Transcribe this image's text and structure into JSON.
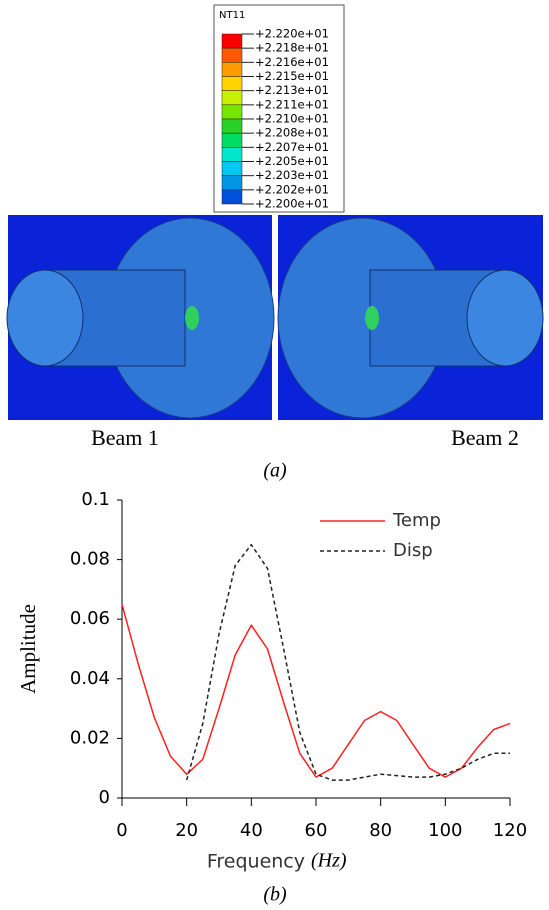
{
  "legend": {
    "title": "NT11",
    "labels": [
      "+2.220e+01",
      "+2.218e+01",
      "+2.216e+01",
      "+2.215e+01",
      "+2.213e+01",
      "+2.211e+01",
      "+2.210e+01",
      "+2.208e+01",
      "+2.207e+01",
      "+2.205e+01",
      "+2.203e+01",
      "+2.202e+01",
      "+2.200e+01"
    ],
    "colors": [
      "#ff0000",
      "#ff5a00",
      "#ff9a00",
      "#ffd200",
      "#c8f000",
      "#78e600",
      "#28d228",
      "#00dc64",
      "#00e6c8",
      "#00c8f0",
      "#0096e6",
      "#0050dc",
      "#0000ff"
    ]
  },
  "panel_a": {
    "beam_labels": [
      "Beam 1",
      "Beam 2"
    ],
    "caption": "(a)"
  },
  "panel_b": {
    "caption": "(b)"
  },
  "chart_data": {
    "type": "line",
    "x_label": "Frequency",
    "x_unit": "(Hz)",
    "y_label": "Amplitude",
    "x": [
      0,
      5,
      10,
      15,
      20,
      25,
      30,
      35,
      40,
      45,
      50,
      55,
      60,
      65,
      70,
      75,
      80,
      85,
      90,
      95,
      100,
      105,
      110,
      115,
      120
    ],
    "series": [
      {
        "name": "Temp",
        "color": "#ff2020",
        "dash": false,
        "values": [
          0.065,
          0.045,
          0.027,
          0.014,
          0.008,
          0.013,
          0.03,
          0.048,
          0.058,
          0.05,
          0.032,
          0.015,
          0.007,
          0.01,
          0.018,
          0.026,
          0.029,
          0.026,
          0.018,
          0.01,
          0.007,
          0.01,
          0.017,
          0.023,
          0.025
        ]
      },
      {
        "name": "Disp",
        "color": "#222222",
        "dash": true,
        "values": [
          null,
          null,
          null,
          null,
          0.006,
          0.025,
          0.055,
          0.078,
          0.085,
          0.077,
          0.05,
          0.022,
          0.008,
          0.006,
          0.006,
          0.007,
          0.008,
          0.0075,
          0.007,
          0.007,
          0.008,
          0.01,
          0.013,
          0.015,
          0.015
        ]
      }
    ],
    "xlim": [
      0,
      120
    ],
    "xticks": [
      0,
      20,
      40,
      60,
      80,
      100,
      120
    ],
    "ylim": [
      0,
      0.1
    ],
    "yticks": [
      0,
      0.02,
      0.04,
      0.06,
      0.08,
      0.1
    ],
    "legend_position": "upper right"
  }
}
